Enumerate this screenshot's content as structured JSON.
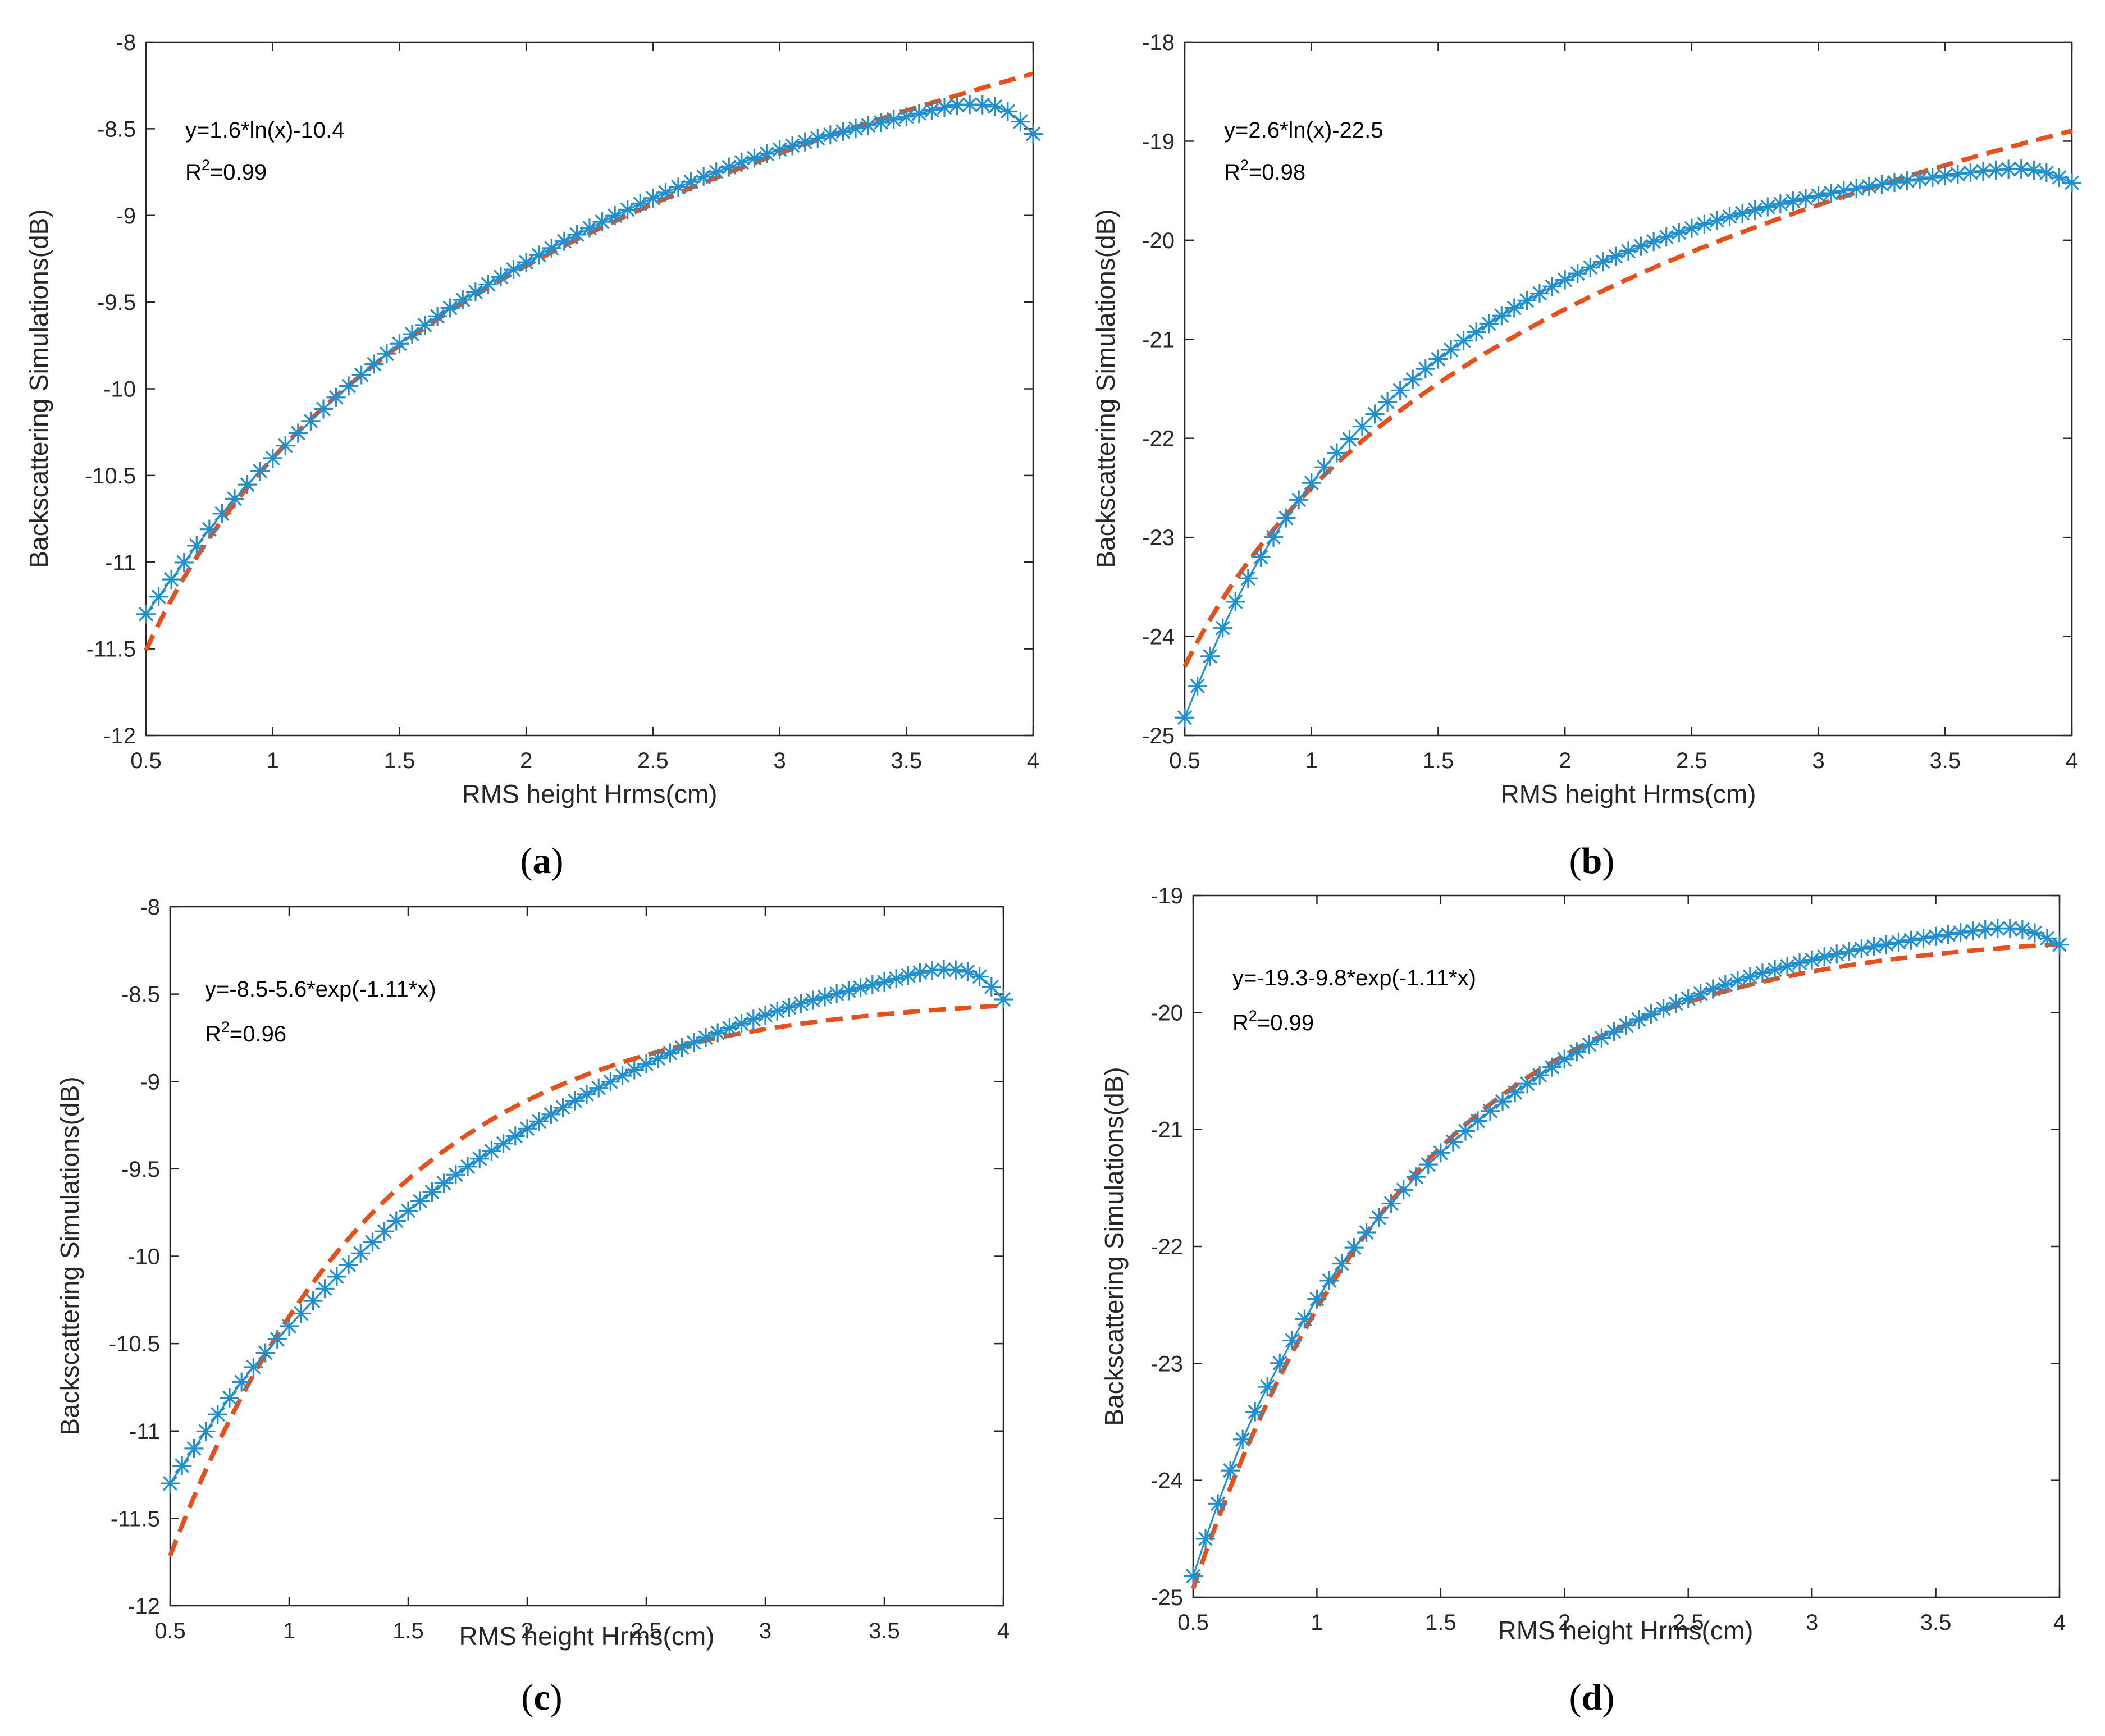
{
  "colors": {
    "simulation": "#1f8fd0",
    "fit": "#e8501b",
    "axis": "#262626"
  },
  "chart_data": [
    {
      "id": "a",
      "type": "line",
      "caption": "a",
      "xlabel": "RMS height Hrms(cm)",
      "ylabel": "Backscattering Simulations(dB)",
      "xlim": [
        0.5,
        4
      ],
      "ylim": [
        -12,
        -8
      ],
      "xticks": [
        "0.5",
        "1",
        "1.5",
        "2",
        "2.5",
        "3",
        "3.5",
        "4"
      ],
      "yticks": [
        "-8",
        "-8.5",
        "-9",
        "-9.5",
        "-10",
        "-10.5",
        "-11",
        "-11.5",
        "-12"
      ],
      "equation": "y=1.6*ln(x)-10.4",
      "r2_prefix": "R",
      "r2_sup": "2",
      "r2_value": "=0.99",
      "fit": {
        "model": "log",
        "a": 1.6,
        "b": -10.4
      },
      "simulation": {
        "x_start": 0.5,
        "x_end": 4.0,
        "x_step": 0.05,
        "knots_x": [
          0.5,
          0.6,
          0.8,
          1.0,
          1.5,
          2.0,
          2.5,
          3.0,
          3.5,
          3.75,
          3.9,
          4.0
        ],
        "knots_y": [
          -11.3,
          -11.1,
          -10.72,
          -10.4,
          -9.74,
          -9.27,
          -8.9,
          -8.62,
          -8.43,
          -8.36,
          -8.4,
          -8.53
        ]
      }
    },
    {
      "id": "b",
      "type": "line",
      "caption": "b",
      "xlabel": "RMS height Hrms(cm)",
      "ylabel": "Backscattering Simulations(dB)",
      "xlim": [
        0.5,
        4
      ],
      "ylim": [
        -25,
        -18
      ],
      "xticks": [
        "0.5",
        "1",
        "1.5",
        "2",
        "2.5",
        "3",
        "3.5",
        "4"
      ],
      "yticks": [
        "-18",
        "-19",
        "-20",
        "-21",
        "-22",
        "-23",
        "-24",
        "-25"
      ],
      "equation": "y=2.6*ln(x)-22.5",
      "r2_prefix": "R",
      "r2_sup": "2",
      "r2_value": "=0.98",
      "fit": {
        "model": "log",
        "a": 2.6,
        "b": -22.5
      },
      "simulation": {
        "x_start": 0.5,
        "x_end": 4.0,
        "x_step": 0.05,
        "knots_x": [
          0.5,
          0.55,
          0.6,
          0.7,
          0.8,
          1.0,
          1.2,
          1.5,
          2.0,
          2.5,
          3.0,
          3.5,
          3.8,
          3.9,
          4.0
        ],
        "knots_y": [
          -24.82,
          -24.5,
          -24.2,
          -23.65,
          -23.2,
          -22.45,
          -21.88,
          -21.2,
          -20.4,
          -19.88,
          -19.55,
          -19.35,
          -19.28,
          -19.32,
          -19.42
        ]
      }
    },
    {
      "id": "c",
      "type": "line",
      "caption": "c",
      "xlabel": "RMS height Hrms(cm)",
      "ylabel": "Backscattering Simulations(dB)",
      "xlim": [
        0.5,
        4
      ],
      "ylim": [
        -12,
        -8
      ],
      "xticks": [
        "0.5",
        "1",
        "1.5",
        "2",
        "2.5",
        "3",
        "3.5",
        "4"
      ],
      "yticks": [
        "-8",
        "-8.5",
        "-9",
        "-9.5",
        "-10",
        "-10.5",
        "-11",
        "-11.5",
        "-12"
      ],
      "equation": "y=-8.5-5.6*exp(-1.11*x)",
      "r2_prefix": "R",
      "r2_sup": "2",
      "r2_value": "=0.96",
      "fit": {
        "model": "exp",
        "a": -8.5,
        "b": -5.6,
        "k": -1.11
      },
      "simulation": {
        "x_start": 0.5,
        "x_end": 4.0,
        "x_step": 0.05,
        "knots_x": [
          0.5,
          0.6,
          0.8,
          1.0,
          1.5,
          2.0,
          2.5,
          3.0,
          3.5,
          3.75,
          3.9,
          4.0
        ],
        "knots_y": [
          -11.3,
          -11.1,
          -10.72,
          -10.4,
          -9.74,
          -9.27,
          -8.9,
          -8.62,
          -8.43,
          -8.36,
          -8.4,
          -8.53
        ]
      }
    },
    {
      "id": "d",
      "type": "line",
      "caption": "d",
      "xlabel": "RMS height Hrms(cm)",
      "ylabel": "Backscattering Simulations(dB)",
      "xlim": [
        0.5,
        4
      ],
      "ylim": [
        -25,
        -19
      ],
      "xticks": [
        "0.5",
        "1",
        "1.5",
        "2",
        "2.5",
        "3",
        "3.5",
        "4"
      ],
      "yticks": [
        "-19",
        "-20",
        "-21",
        "-22",
        "-23",
        "-24",
        "-25"
      ],
      "equation": "y=-19.3-9.8*exp(-1.11*x)",
      "r2_prefix": "R",
      "r2_sup": "2",
      "r2_value": "=0.99",
      "fit": {
        "model": "exp",
        "a": -19.3,
        "b": -9.8,
        "k": -1.11
      },
      "simulation": {
        "x_start": 0.5,
        "x_end": 4.0,
        "x_step": 0.05,
        "knots_x": [
          0.5,
          0.55,
          0.6,
          0.7,
          0.8,
          1.0,
          1.2,
          1.5,
          2.0,
          2.5,
          3.0,
          3.5,
          3.8,
          3.9,
          4.0
        ],
        "knots_y": [
          -24.82,
          -24.5,
          -24.2,
          -23.65,
          -23.2,
          -22.45,
          -21.88,
          -21.2,
          -20.4,
          -19.88,
          -19.55,
          -19.35,
          -19.28,
          -19.32,
          -19.42
        ]
      }
    }
  ]
}
